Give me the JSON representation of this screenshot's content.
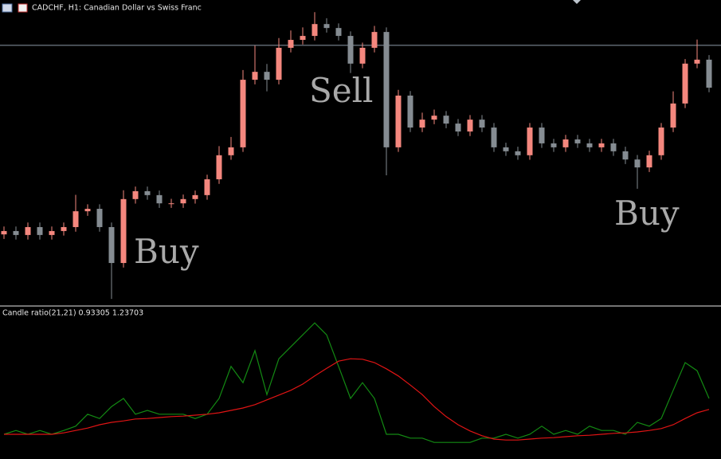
{
  "chart_data": [
    {
      "type": "candlestick",
      "title": "CADCHF, H1:  Canadian Dollar vs Swiss Franc",
      "ylim": [
        0,
        100
      ],
      "up_color": "#f4877e",
      "down_color": "#858c92",
      "hline": 85.1,
      "hline_color": "#8c9aa8",
      "open": [
        23.0,
        24.1,
        22.8,
        25.4,
        22.8,
        24.1,
        25.4,
        30.6,
        31.4,
        25.4,
        13.6,
        34.6,
        37.2,
        35.9,
        33.2,
        33.2,
        34.6,
        35.9,
        41.1,
        49.0,
        51.6,
        73.8,
        76.4,
        73.8,
        84.3,
        86.9,
        88.2,
        92.1,
        90.8,
        88.2,
        79.1,
        84.3,
        89.5,
        51.6,
        68.6,
        58.1,
        60.7,
        62.0,
        59.4,
        56.8,
        60.7,
        58.1,
        51.6,
        50.3,
        49.0,
        58.1,
        52.9,
        51.6,
        54.2,
        52.9,
        51.6,
        52.9,
        50.3,
        47.6,
        45.0,
        49.0,
        58.1,
        66.0,
        79.1,
        80.4
      ],
      "high": [
        25.6,
        25.6,
        26.9,
        26.9,
        25.6,
        26.9,
        36.0,
        32.9,
        32.9,
        26.9,
        37.5,
        38.7,
        38.7,
        37.4,
        34.7,
        36.1,
        37.4,
        42.6,
        52.0,
        55.0,
        77.0,
        85.0,
        79.0,
        87.5,
        90.0,
        91.0,
        96.0,
        94.0,
        92.3,
        89.7,
        86.0,
        91.5,
        91.0,
        70.5,
        70.1,
        63.0,
        64.0,
        63.5,
        60.9,
        62.2,
        62.2,
        59.6,
        53.1,
        51.8,
        59.6,
        59.6,
        54.4,
        55.7,
        55.7,
        54.4,
        54.4,
        54.4,
        51.8,
        49.1,
        50.5,
        59.6,
        70.0,
        80.6,
        87.0,
        81.9
      ],
      "low": [
        21.5,
        21.3,
        21.3,
        21.3,
        21.3,
        22.6,
        23.9,
        29.1,
        23.9,
        1.8,
        12.1,
        33.1,
        34.4,
        31.7,
        31.7,
        31.7,
        33.1,
        34.4,
        39.6,
        47.5,
        50.1,
        72.3,
        70.0,
        72.3,
        82.8,
        85.4,
        86.7,
        89.3,
        86.7,
        76.0,
        77.6,
        82.8,
        42.4,
        50.1,
        56.6,
        56.6,
        59.2,
        57.9,
        55.3,
        55.3,
        56.6,
        50.1,
        48.8,
        47.5,
        47.5,
        51.4,
        50.1,
        50.1,
        51.4,
        50.1,
        50.1,
        48.8,
        46.1,
        38.0,
        43.5,
        47.5,
        56.6,
        64.5,
        77.6,
        69.7
      ],
      "close": [
        24.1,
        22.8,
        25.4,
        22.8,
        24.1,
        25.4,
        30.6,
        31.4,
        25.4,
        13.6,
        34.6,
        37.2,
        35.9,
        33.2,
        33.2,
        34.6,
        35.9,
        41.1,
        49.0,
        51.6,
        73.8,
        76.4,
        73.8,
        84.3,
        86.9,
        88.2,
        92.1,
        90.8,
        88.2,
        79.1,
        84.3,
        89.5,
        51.6,
        68.6,
        58.1,
        60.7,
        62.0,
        59.4,
        56.8,
        60.7,
        58.1,
        51.6,
        50.3,
        49.0,
        58.1,
        52.9,
        51.6,
        54.2,
        52.9,
        51.6,
        52.9,
        50.3,
        47.6,
        45.0,
        49.0,
        58.1,
        66.0,
        79.1,
        80.4,
        71.2
      ],
      "annotations": [
        "Buy",
        "Sell",
        "Buy"
      ]
    },
    {
      "type": "line",
      "title": "Candle ratio(21,21) 0.93305 1.23703",
      "ylim": [
        0,
        3
      ],
      "series": [
        {
          "color": "#138a13",
          "values": [
            0.5,
            0.58,
            0.5,
            0.58,
            0.5,
            0.58,
            0.67,
            0.92,
            0.83,
            1.08,
            1.25,
            0.92,
            1.0,
            0.92,
            0.92,
            0.92,
            0.83,
            0.92,
            1.25,
            1.92,
            1.58,
            2.25,
            1.33,
            2.08,
            2.33,
            2.58,
            2.83,
            2.58,
            1.92,
            1.25,
            1.58,
            1.25,
            0.5,
            0.5,
            0.42,
            0.42,
            0.33,
            0.33,
            0.33,
            0.33,
            0.42,
            0.42,
            0.5,
            0.42,
            0.5,
            0.67,
            0.5,
            0.58,
            0.5,
            0.67,
            0.58,
            0.58,
            0.5,
            0.75,
            0.67,
            0.83,
            1.42,
            2.0,
            1.83,
            1.25
          ]
        },
        {
          "color": "#e01414",
          "values": [
            0.5,
            0.5,
            0.5,
            0.5,
            0.5,
            0.53,
            0.58,
            0.63,
            0.7,
            0.75,
            0.78,
            0.82,
            0.83,
            0.85,
            0.87,
            0.88,
            0.9,
            0.92,
            0.95,
            1.0,
            1.05,
            1.12,
            1.22,
            1.32,
            1.42,
            1.55,
            1.72,
            1.88,
            2.03,
            2.08,
            2.07,
            2.0,
            1.87,
            1.72,
            1.53,
            1.33,
            1.08,
            0.87,
            0.7,
            0.57,
            0.47,
            0.4,
            0.38,
            0.38,
            0.4,
            0.42,
            0.43,
            0.45,
            0.47,
            0.48,
            0.5,
            0.52,
            0.53,
            0.55,
            0.58,
            0.62,
            0.7,
            0.83,
            0.95,
            1.02
          ]
        }
      ]
    }
  ]
}
